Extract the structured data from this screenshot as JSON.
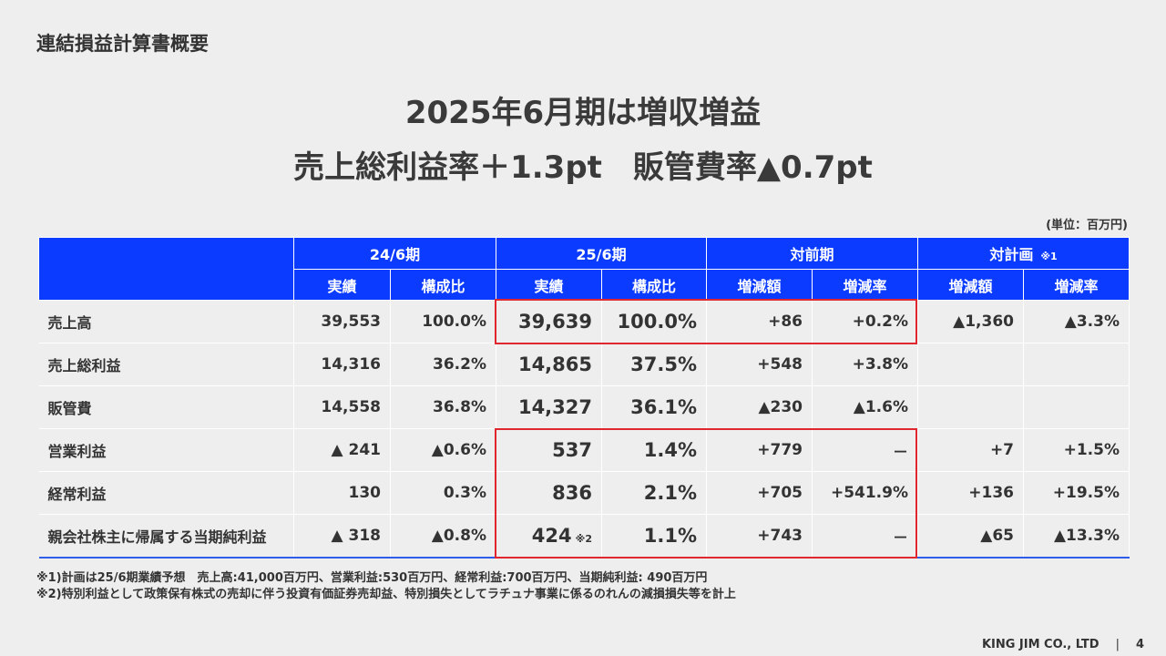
{
  "section_title": "連結損益計算書概要",
  "headline": {
    "line1": "2025年6月期は増収増益",
    "line2": "売上総利益率＋1.3pt　販管費率▲0.7pt"
  },
  "unit_label": "(単位：百万円)",
  "table": {
    "group_headers": [
      "24/6期",
      "25/6期",
      "対前期",
      "対計画"
    ],
    "plan_note_mark": "※1",
    "sub_headers": [
      "実績",
      "構成比",
      "実績",
      "構成比",
      "増減額",
      "増減率",
      "増減額",
      "増減率"
    ],
    "rows": [
      {
        "label": "売上高",
        "c": [
          "39,553",
          "100.0%",
          "39,639",
          "100.0%",
          "+86",
          "+0.2%",
          "▲1,360",
          "▲3.3%"
        ],
        "note": ""
      },
      {
        "label": "売上総利益",
        "c": [
          "14,316",
          "36.2%",
          "14,865",
          "37.5%",
          "+548",
          "+3.8%",
          "",
          ""
        ],
        "note": ""
      },
      {
        "label": "販管費",
        "c": [
          "14,558",
          "36.8%",
          "14,327",
          "36.1%",
          "▲230",
          "▲1.6%",
          "",
          ""
        ],
        "note": ""
      },
      {
        "label": "営業利益",
        "c": [
          "▲ 241",
          "▲0.6%",
          "537",
          "1.4%",
          "+779",
          "－",
          "+7",
          "+1.5%"
        ],
        "note": ""
      },
      {
        "label": "経常利益",
        "c": [
          "130",
          "0.3%",
          "836",
          "2.1%",
          "+705",
          "+541.9%",
          "+136",
          "+19.5%"
        ],
        "note": ""
      },
      {
        "label": "親会社株主に帰属する当期純利益",
        "c": [
          "▲ 318",
          "▲0.8%",
          "424",
          "1.1%",
          "+743",
          "－",
          "▲65",
          "▲13.3%"
        ],
        "note": "※2"
      }
    ]
  },
  "notes": [
    "※1)計画は25/6期業績予想　売上高:41,000百万円、営業利益:530百万円、経常利益:700百万円、当期純利益: 490百万円",
    "※2)特別利益として政策保有株式の売却に伴う投資有価証券売却益、特別損失としてラチュナ事業に係るのれんの減損損失等を計上"
  ],
  "footer": {
    "company": "KING JIM CO., LTD",
    "separator": "|",
    "page_number": "4"
  },
  "colors": {
    "header_blue": "#0b3bff",
    "highlight_red": "#e0262e",
    "background": "#eeeeee"
  }
}
